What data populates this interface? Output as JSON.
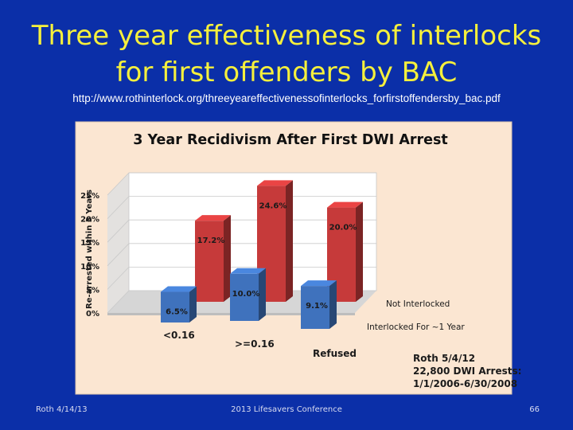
{
  "slide": {
    "title_line1": "Three year effectiveness of interlocks",
    "title_line2": "for first offenders by BAC",
    "source_url": "http://www.rothinterlock.org/threeyeareffectivenessofinterlocks_forfirstoffendersby_bac.pdf",
    "footer_left": "Roth 4/14/13",
    "footer_center": "2013 Lifesavers Conference",
    "footer_right": "66"
  },
  "colors": {
    "background": "#0b2fa8",
    "title": "#f6f03c",
    "chart_bg": "#fbe6d2",
    "not_interlocked": "#c63a3a",
    "interlocked": "#3f72bd"
  },
  "chart_data": {
    "type": "bar",
    "title": "3 Year Recidivism After First DWI Arrest",
    "ylabel": "Re-arrested within 3 Years",
    "ylim": [
      0,
      25
    ],
    "yticks": [
      "0%",
      "5%",
      "10%",
      "15%",
      "20%",
      "25%"
    ],
    "categories": [
      "<0.16",
      ">=0.16",
      "Refused"
    ],
    "series": [
      {
        "name": "Not Interlocked",
        "values": [
          17.2,
          24.6,
          20.0
        ],
        "labels": [
          "17.2%",
          "24.6%",
          "20.0%"
        ]
      },
      {
        "name": "Interlocked For ~1 Year",
        "values": [
          6.5,
          10.0,
          9.1
        ],
        "labels": [
          "6.5%",
          "10.0%",
          "9.1%"
        ]
      }
    ],
    "grid": true,
    "annotation_lines": [
      "Roth 5/4/12",
      "22,800 DWI Arrests:",
      "1/1/2006-6/30/2008"
    ]
  }
}
